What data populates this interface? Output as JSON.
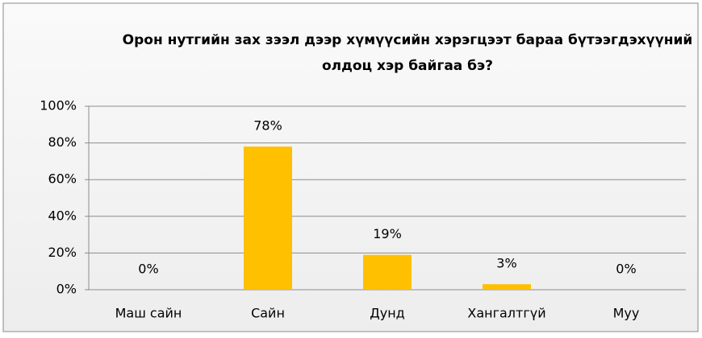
{
  "chart_data": {
    "type": "bar",
    "title": "Орон нутгийн зах зээл дээр хүмүүсийн хэрэгцээт бараа бүтээгдэхүүний олдоц хэр байгаа бэ?",
    "categories": [
      "Маш сайн",
      "Сайн",
      "Дунд",
      "Хангалтгүй",
      "Муу"
    ],
    "values": [
      0,
      78,
      19,
      3,
      0
    ],
    "value_labels": [
      "0%",
      "78%",
      "19%",
      "3%",
      "0%"
    ],
    "color": "#ffc000",
    "ylim": [
      0,
      100
    ],
    "yticks": [
      {
        "value": 0,
        "label": "0%"
      },
      {
        "value": 20,
        "label": "20%"
      },
      {
        "value": 40,
        "label": "40%"
      },
      {
        "value": 60,
        "label": "60%"
      },
      {
        "value": 80,
        "label": "80%"
      },
      {
        "value": 100,
        "label": "100%"
      }
    ],
    "grid": true
  }
}
